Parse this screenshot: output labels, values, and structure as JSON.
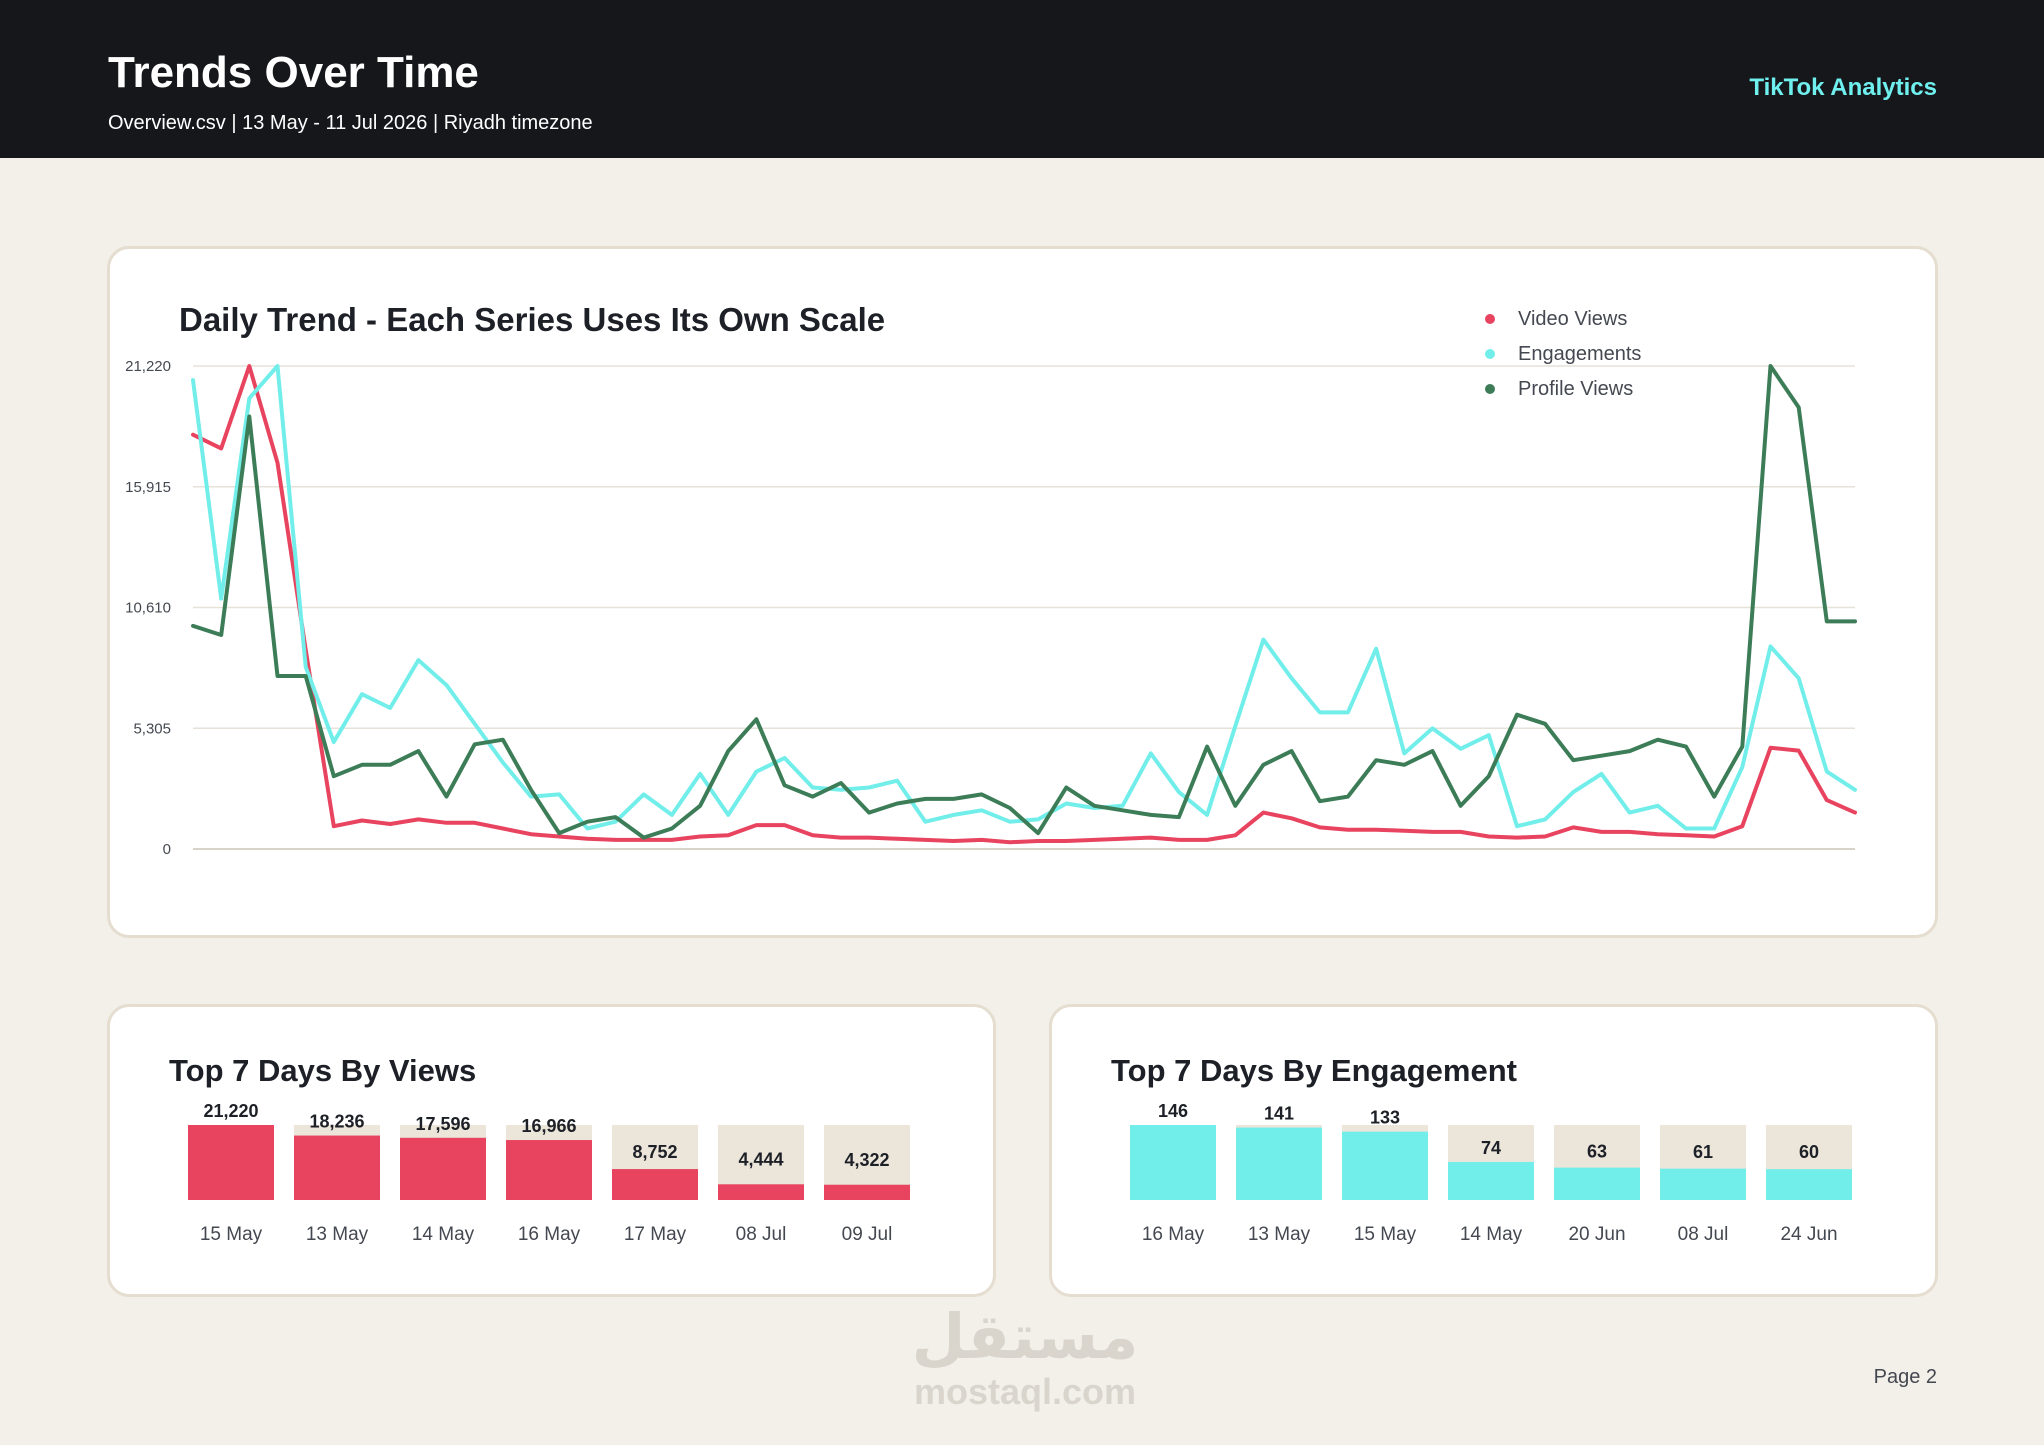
{
  "header": {
    "title": "Trends Over Time",
    "subtitle": "Overview.csv | 13 May - 11 Jul 2026 | Riyadh timezone",
    "brand": "TikTok Analytics"
  },
  "colors": {
    "header_bg": "#16171b",
    "video_views": "#e8445f",
    "engagements": "#72eeea",
    "profile_views": "#3c7d58",
    "bar_track": "#ebe5da"
  },
  "footer": {
    "page": "Page 2",
    "watermark_ar": "مستقل",
    "watermark_en": "mostaql.com"
  },
  "chart_data": [
    {
      "type": "line",
      "title": "Daily Trend - Each Series Uses Its Own Scale",
      "xlabel": "",
      "ylabel": "",
      "ylim": [
        0,
        21220
      ],
      "yticks": [
        "0",
        "5,305",
        "10,610",
        "15,915",
        "21,220"
      ],
      "grid": true,
      "legend_position": "top-right",
      "series": [
        {
          "name": "Video Views",
          "color": "#e8445f",
          "values": [
            18200,
            17600,
            21220,
            16966,
            8752,
            1000,
            1250,
            1100,
            1300,
            1150,
            1150,
            900,
            650,
            550,
            450,
            400,
            400,
            400,
            550,
            600,
            1050,
            1050,
            600,
            500,
            500,
            450,
            400,
            350,
            400,
            300,
            350,
            350,
            400,
            450,
            500,
            400,
            400,
            600,
            1600,
            1350,
            950,
            850,
            850,
            800,
            750,
            750,
            550,
            500,
            550,
            950,
            750,
            750,
            650,
            600,
            550,
            1000,
            4444,
            4322,
            2150,
            1600
          ]
        },
        {
          "name": "Engagements",
          "color": "#72eeea",
          "values": [
            20600,
            11000,
            19800,
            21220,
            8000,
            4700,
            6800,
            6200,
            8300,
            7200,
            5500,
            3800,
            2300,
            2400,
            900,
            1200,
            2400,
            1500,
            3300,
            1500,
            3400,
            4000,
            2700,
            2600,
            2700,
            3000,
            1200,
            1500,
            1700,
            1200,
            1300,
            2000,
            1800,
            1900,
            4200,
            2500,
            1500,
            5400,
            9200,
            7500,
            6000,
            6000,
            8800,
            4200,
            5300,
            4400,
            5000,
            1000,
            1300,
            2500,
            3300,
            1600,
            1900,
            900,
            900,
            3600,
            8900,
            7500,
            3400,
            2600
          ]
        },
        {
          "name": "Profile Views",
          "color": "#3c7d58",
          "values": [
            9800,
            9400,
            19000,
            7600,
            7600,
            3200,
            3700,
            3700,
            4300,
            2300,
            4600,
            4800,
            2600,
            700,
            1200,
            1400,
            500,
            900,
            1900,
            4300,
            5700,
            2800,
            2300,
            2900,
            1600,
            2000,
            2200,
            2200,
            2400,
            1800,
            700,
            2700,
            1900,
            1700,
            1500,
            1400,
            4500,
            1900,
            3700,
            4300,
            2100,
            2300,
            3900,
            3700,
            4300,
            1900,
            3200,
            5900,
            5500,
            3900,
            4100,
            4300,
            4800,
            4500,
            2300,
            4500,
            21220,
            19400,
            10000,
            10000
          ]
        }
      ]
    },
    {
      "type": "bar",
      "title": "Top 7 Days By Views",
      "categories": [
        "15 May",
        "13 May",
        "14 May",
        "16 May",
        "17 May",
        "08 Jul",
        "09 Jul"
      ],
      "values": [
        21220,
        18236,
        17596,
        16966,
        8752,
        4444,
        4322
      ],
      "value_labels": [
        "21,220",
        "18,236",
        "17,596",
        "16,966",
        "8,752",
        "4,444",
        "4,322"
      ],
      "ylim": [
        0,
        21220
      ],
      "color": "#e8445f"
    },
    {
      "type": "bar",
      "title": "Top 7 Days By Engagement",
      "categories": [
        "16 May",
        "13 May",
        "15 May",
        "14 May",
        "20 Jun",
        "08 Jul",
        "24 Jun"
      ],
      "values": [
        146,
        141,
        133,
        74,
        63,
        61,
        60
      ],
      "value_labels": [
        "146",
        "141",
        "133",
        "74",
        "63",
        "61",
        "60"
      ],
      "ylim": [
        0,
        146
      ],
      "color": "#72eeea"
    }
  ]
}
